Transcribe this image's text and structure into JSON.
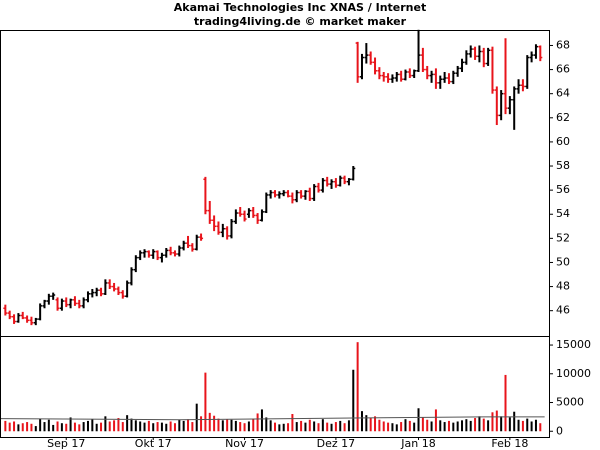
{
  "chart_data": {
    "type": "ohlc",
    "title": "Akamai Technologies Inc XNAS / Internet",
    "subtitle": "trading4living.de © market maker",
    "up_color": "#000000",
    "down_color": "#e8141b",
    "average_color": "#555555",
    "xlim": [
      -1,
      125
    ],
    "xticks": [
      {
        "value": 14,
        "label": "Sep 17"
      },
      {
        "value": 34,
        "label": "Okt 17"
      },
      {
        "value": 55,
        "label": "Nov 17"
      },
      {
        "value": 76,
        "label": "Dez 17"
      },
      {
        "value": 95,
        "label": "Jan 18"
      },
      {
        "value": 116,
        "label": "Feb 18"
      }
    ],
    "ylim": [
      43.9,
      69.2
    ],
    "yticks": [
      46,
      48,
      50,
      52,
      54,
      56,
      58,
      60,
      62,
      64,
      66,
      68
    ],
    "vlim": [
      -1000,
      16400
    ],
    "vticks": [
      0,
      5000,
      10000,
      15000
    ],
    "volume_average": {
      "x": [
        -1,
        40,
        80,
        110,
        124
      ],
      "values": [
        2200,
        2000,
        2300,
        2500,
        2500
      ]
    },
    "bars": [
      {
        "o": 46.2,
        "h": 46.5,
        "l": 45.6,
        "c": 45.8,
        "v": 1800
      },
      {
        "o": 45.8,
        "h": 46.0,
        "l": 45.3,
        "c": 45.5,
        "v": 1500
      },
      {
        "o": 45.5,
        "h": 45.7,
        "l": 44.9,
        "c": 45.1,
        "v": 1700
      },
      {
        "o": 45.1,
        "h": 45.8,
        "l": 45.0,
        "c": 45.6,
        "v": 1200
      },
      {
        "o": 45.6,
        "h": 45.9,
        "l": 45.3,
        "c": 45.4,
        "v": 1400
      },
      {
        "o": 45.4,
        "h": 45.6,
        "l": 45.0,
        "c": 45.2,
        "v": 1600
      },
      {
        "o": 45.2,
        "h": 45.5,
        "l": 44.8,
        "c": 45.0,
        "v": 1300
      },
      {
        "o": 45.0,
        "h": 45.4,
        "l": 44.8,
        "c": 45.3,
        "v": 900
      },
      {
        "o": 45.3,
        "h": 46.6,
        "l": 45.2,
        "c": 46.4,
        "v": 2200
      },
      {
        "o": 46.4,
        "h": 46.9,
        "l": 46.2,
        "c": 46.8,
        "v": 1600
      },
      {
        "o": 46.8,
        "h": 47.4,
        "l": 46.5,
        "c": 47.2,
        "v": 2000
      },
      {
        "o": 47.2,
        "h": 47.5,
        "l": 46.9,
        "c": 47.3,
        "v": 1100
      },
      {
        "o": 46.9,
        "h": 47.1,
        "l": 46.0,
        "c": 46.2,
        "v": 1700
      },
      {
        "o": 46.2,
        "h": 47.0,
        "l": 46.0,
        "c": 46.8,
        "v": 1400
      },
      {
        "o": 46.8,
        "h": 47.1,
        "l": 46.3,
        "c": 46.5,
        "v": 1300
      },
      {
        "o": 46.5,
        "h": 47.0,
        "l": 46.2,
        "c": 46.9,
        "v": 2400
      },
      {
        "o": 46.9,
        "h": 47.2,
        "l": 46.4,
        "c": 46.6,
        "v": 1500
      },
      {
        "o": 46.6,
        "h": 46.9,
        "l": 46.2,
        "c": 46.4,
        "v": 1200
      },
      {
        "o": 46.4,
        "h": 47.1,
        "l": 46.2,
        "c": 46.9,
        "v": 1600
      },
      {
        "o": 46.9,
        "h": 47.6,
        "l": 46.7,
        "c": 47.4,
        "v": 1800
      },
      {
        "o": 47.4,
        "h": 47.8,
        "l": 47.1,
        "c": 47.5,
        "v": 2100
      },
      {
        "o": 47.5,
        "h": 47.9,
        "l": 47.2,
        "c": 47.7,
        "v": 1300
      },
      {
        "o": 47.7,
        "h": 47.9,
        "l": 47.2,
        "c": 47.4,
        "v": 1500
      },
      {
        "o": 47.4,
        "h": 48.6,
        "l": 47.3,
        "c": 48.3,
        "v": 2600
      },
      {
        "o": 48.3,
        "h": 48.6,
        "l": 47.8,
        "c": 48.0,
        "v": 1700
      },
      {
        "o": 48.0,
        "h": 48.3,
        "l": 47.6,
        "c": 47.8,
        "v": 1900
      },
      {
        "o": 47.8,
        "h": 48.0,
        "l": 47.3,
        "c": 47.5,
        "v": 2300
      },
      {
        "o": 47.5,
        "h": 47.7,
        "l": 47.0,
        "c": 47.2,
        "v": 1600
      },
      {
        "o": 47.2,
        "h": 48.5,
        "l": 47.1,
        "c": 48.3,
        "v": 2800
      },
      {
        "o": 48.3,
        "h": 49.6,
        "l": 48.1,
        "c": 49.4,
        "v": 2200
      },
      {
        "o": 49.4,
        "h": 50.6,
        "l": 49.2,
        "c": 50.4,
        "v": 1900
      },
      {
        "o": 50.4,
        "h": 51.0,
        "l": 50.2,
        "c": 50.8,
        "v": 1700
      },
      {
        "o": 50.8,
        "h": 51.1,
        "l": 50.4,
        "c": 50.9,
        "v": 1500
      },
      {
        "o": 50.9,
        "h": 51.0,
        "l": 50.4,
        "c": 50.6,
        "v": 1800
      },
      {
        "o": 50.6,
        "h": 51.1,
        "l": 50.3,
        "c": 50.9,
        "v": 1400
      },
      {
        "o": 50.9,
        "h": 51.0,
        "l": 50.2,
        "c": 50.4,
        "v": 1600
      },
      {
        "o": 50.4,
        "h": 50.8,
        "l": 50.0,
        "c": 50.6,
        "v": 1500
      },
      {
        "o": 50.6,
        "h": 51.2,
        "l": 50.4,
        "c": 51.0,
        "v": 1300
      },
      {
        "o": 51.0,
        "h": 51.3,
        "l": 50.6,
        "c": 50.8,
        "v": 1700
      },
      {
        "o": 50.8,
        "h": 51.0,
        "l": 50.5,
        "c": 50.7,
        "v": 1400
      },
      {
        "o": 50.7,
        "h": 51.4,
        "l": 50.5,
        "c": 51.2,
        "v": 2000
      },
      {
        "o": 51.2,
        "h": 51.8,
        "l": 51.0,
        "c": 51.6,
        "v": 1800
      },
      {
        "o": 51.6,
        "h": 52.2,
        "l": 51.2,
        "c": 51.4,
        "v": 2100
      },
      {
        "o": 51.4,
        "h": 51.6,
        "l": 50.9,
        "c": 51.1,
        "v": 1600
      },
      {
        "o": 51.1,
        "h": 52.3,
        "l": 51.0,
        "c": 52.1,
        "v": 4800
      },
      {
        "o": 52.1,
        "h": 52.4,
        "l": 51.8,
        "c": 52.0,
        "v": 2600
      },
      {
        "o": 56.9,
        "h": 57.1,
        "l": 54.0,
        "c": 54.3,
        "v": 10200
      },
      {
        "o": 54.3,
        "h": 55.1,
        "l": 53.2,
        "c": 53.5,
        "v": 3200
      },
      {
        "o": 53.5,
        "h": 53.9,
        "l": 52.6,
        "c": 53.0,
        "v": 2700
      },
      {
        "o": 53.0,
        "h": 53.4,
        "l": 52.3,
        "c": 52.5,
        "v": 2200
      },
      {
        "o": 52.5,
        "h": 53.2,
        "l": 52.1,
        "c": 52.8,
        "v": 1900
      },
      {
        "o": 52.8,
        "h": 53.0,
        "l": 51.9,
        "c": 52.2,
        "v": 2100
      },
      {
        "o": 52.2,
        "h": 53.6,
        "l": 52.0,
        "c": 53.4,
        "v": 2000
      },
      {
        "o": 53.4,
        "h": 54.4,
        "l": 53.2,
        "c": 54.1,
        "v": 1800
      },
      {
        "o": 54.1,
        "h": 54.6,
        "l": 53.8,
        "c": 54.0,
        "v": 1600
      },
      {
        "o": 54.0,
        "h": 54.3,
        "l": 53.4,
        "c": 53.6,
        "v": 1400
      },
      {
        "o": 54.0,
        "h": 54.5,
        "l": 53.7,
        "c": 54.3,
        "v": 1700
      },
      {
        "o": 54.3,
        "h": 54.6,
        "l": 53.7,
        "c": 53.9,
        "v": 2200
      },
      {
        "o": 53.9,
        "h": 54.1,
        "l": 53.2,
        "c": 53.5,
        "v": 3100
      },
      {
        "o": 53.5,
        "h": 54.4,
        "l": 53.4,
        "c": 54.2,
        "v": 3800
      },
      {
        "o": 54.2,
        "h": 55.8,
        "l": 54.1,
        "c": 55.6,
        "v": 2400
      },
      {
        "o": 55.6,
        "h": 56.0,
        "l": 55.3,
        "c": 55.8,
        "v": 1900
      },
      {
        "o": 55.8,
        "h": 56.0,
        "l": 55.4,
        "c": 55.6,
        "v": 1500
      },
      {
        "o": 55.6,
        "h": 55.9,
        "l": 55.3,
        "c": 55.7,
        "v": 1200
      },
      {
        "o": 55.7,
        "h": 56.0,
        "l": 55.5,
        "c": 55.8,
        "v": 1300
      },
      {
        "o": 55.8,
        "h": 56.0,
        "l": 55.4,
        "c": 55.5,
        "v": 1400
      },
      {
        "o": 55.5,
        "h": 55.8,
        "l": 54.9,
        "c": 55.2,
        "v": 3000
      },
      {
        "o": 55.2,
        "h": 56.0,
        "l": 55.0,
        "c": 55.8,
        "v": 1600
      },
      {
        "o": 55.8,
        "h": 56.0,
        "l": 55.3,
        "c": 55.5,
        "v": 1800
      },
      {
        "o": 55.5,
        "h": 56.0,
        "l": 55.2,
        "c": 55.9,
        "v": 1500
      },
      {
        "o": 55.9,
        "h": 56.2,
        "l": 55.1,
        "c": 55.3,
        "v": 2000
      },
      {
        "o": 55.3,
        "h": 56.5,
        "l": 55.1,
        "c": 56.3,
        "v": 1700
      },
      {
        "o": 56.3,
        "h": 56.6,
        "l": 55.8,
        "c": 56.0,
        "v": 1400
      },
      {
        "o": 56.0,
        "h": 57.0,
        "l": 55.8,
        "c": 56.8,
        "v": 2100
      },
      {
        "o": 56.8,
        "h": 57.1,
        "l": 56.3,
        "c": 56.5,
        "v": 1500
      },
      {
        "o": 56.5,
        "h": 56.9,
        "l": 56.1,
        "c": 56.7,
        "v": 1300
      },
      {
        "o": 56.7,
        "h": 57.0,
        "l": 56.2,
        "c": 56.4,
        "v": 1600
      },
      {
        "o": 56.4,
        "h": 57.2,
        "l": 56.3,
        "c": 57.0,
        "v": 1800
      },
      {
        "o": 57.0,
        "h": 57.2,
        "l": 56.5,
        "c": 56.7,
        "v": 1400
      },
      {
        "o": 56.7,
        "h": 57.0,
        "l": 56.4,
        "c": 56.9,
        "v": 1900
      },
      {
        "o": 56.9,
        "h": 58.0,
        "l": 56.8,
        "c": 57.8,
        "v": 10700
      },
      {
        "o": 68.2,
        "h": 68.3,
        "l": 64.9,
        "c": 65.4,
        "v": 15500
      },
      {
        "o": 65.4,
        "h": 67.3,
        "l": 65.2,
        "c": 67.0,
        "v": 3500
      },
      {
        "o": 67.0,
        "h": 68.2,
        "l": 66.5,
        "c": 67.2,
        "v": 2800
      },
      {
        "o": 67.2,
        "h": 67.5,
        "l": 66.4,
        "c": 66.6,
        "v": 2300
      },
      {
        "o": 66.6,
        "h": 67.0,
        "l": 65.6,
        "c": 65.9,
        "v": 2600
      },
      {
        "o": 65.9,
        "h": 66.2,
        "l": 65.2,
        "c": 65.5,
        "v": 2000
      },
      {
        "o": 65.5,
        "h": 65.8,
        "l": 65.0,
        "c": 65.4,
        "v": 1700
      },
      {
        "o": 65.4,
        "h": 65.7,
        "l": 64.9,
        "c": 65.2,
        "v": 1500
      },
      {
        "o": 65.2,
        "h": 65.6,
        "l": 64.9,
        "c": 65.3,
        "v": 1400
      },
      {
        "o": 65.3,
        "h": 65.8,
        "l": 65.0,
        "c": 65.6,
        "v": 1200
      },
      {
        "o": 65.6,
        "h": 65.9,
        "l": 65.0,
        "c": 65.2,
        "v": 1600
      },
      {
        "o": 65.2,
        "h": 66.0,
        "l": 65.1,
        "c": 65.8,
        "v": 2100
      },
      {
        "o": 65.8,
        "h": 66.1,
        "l": 65.3,
        "c": 65.5,
        "v": 1800
      },
      {
        "o": 65.5,
        "h": 66.0,
        "l": 65.3,
        "c": 65.9,
        "v": 1500
      },
      {
        "o": 65.9,
        "h": 69.3,
        "l": 65.8,
        "c": 67.2,
        "v": 4000
      },
      {
        "o": 67.2,
        "h": 67.8,
        "l": 65.8,
        "c": 66.0,
        "v": 2400
      },
      {
        "o": 66.0,
        "h": 66.3,
        "l": 65.2,
        "c": 65.5,
        "v": 2000
      },
      {
        "o": 65.5,
        "h": 65.9,
        "l": 64.9,
        "c": 65.6,
        "v": 1700
      },
      {
        "o": 65.6,
        "h": 66.1,
        "l": 64.4,
        "c": 64.9,
        "v": 3800
      },
      {
        "o": 64.9,
        "h": 65.5,
        "l": 64.4,
        "c": 65.2,
        "v": 1900
      },
      {
        "o": 65.2,
        "h": 65.8,
        "l": 64.9,
        "c": 65.3,
        "v": 1600
      },
      {
        "o": 65.3,
        "h": 65.7,
        "l": 64.8,
        "c": 65.0,
        "v": 1800
      },
      {
        "o": 65.0,
        "h": 65.9,
        "l": 64.8,
        "c": 65.7,
        "v": 1500
      },
      {
        "o": 65.7,
        "h": 66.3,
        "l": 65.4,
        "c": 66.1,
        "v": 1700
      },
      {
        "o": 66.1,
        "h": 66.9,
        "l": 65.8,
        "c": 66.6,
        "v": 1900
      },
      {
        "o": 66.6,
        "h": 67.6,
        "l": 66.4,
        "c": 67.3,
        "v": 2100
      },
      {
        "o": 67.3,
        "h": 68.0,
        "l": 67.0,
        "c": 67.7,
        "v": 1800
      },
      {
        "o": 67.7,
        "h": 67.9,
        "l": 66.8,
        "c": 67.1,
        "v": 2300
      },
      {
        "o": 67.1,
        "h": 68.0,
        "l": 66.6,
        "c": 67.5,
        "v": 2600
      },
      {
        "o": 67.5,
        "h": 67.8,
        "l": 66.2,
        "c": 66.5,
        "v": 2200
      },
      {
        "o": 66.5,
        "h": 67.8,
        "l": 66.3,
        "c": 67.6,
        "v": 1900
      },
      {
        "o": 67.6,
        "h": 67.9,
        "l": 64.0,
        "c": 64.3,
        "v": 3300
      },
      {
        "o": 64.3,
        "h": 64.6,
        "l": 61.4,
        "c": 62.2,
        "v": 3600
      },
      {
        "o": 62.2,
        "h": 64.3,
        "l": 61.8,
        "c": 64.0,
        "v": 2600
      },
      {
        "o": 64.0,
        "h": 68.6,
        "l": 62.3,
        "c": 62.8,
        "v": 9800
      },
      {
        "o": 62.8,
        "h": 63.8,
        "l": 62.3,
        "c": 63.5,
        "v": 2400
      },
      {
        "o": 63.5,
        "h": 64.6,
        "l": 61.0,
        "c": 64.4,
        "v": 3400
      },
      {
        "o": 64.4,
        "h": 65.2,
        "l": 64.0,
        "c": 64.7,
        "v": 2000
      },
      {
        "o": 64.7,
        "h": 65.2,
        "l": 64.2,
        "c": 64.6,
        "v": 1800
      },
      {
        "o": 64.6,
        "h": 67.2,
        "l": 64.4,
        "c": 67.0,
        "v": 2200
      },
      {
        "o": 67.0,
        "h": 67.5,
        "l": 66.6,
        "c": 67.2,
        "v": 1700
      },
      {
        "o": 67.2,
        "h": 68.1,
        "l": 66.9,
        "c": 67.9,
        "v": 2000
      },
      {
        "o": 67.9,
        "h": 68.0,
        "l": 66.7,
        "c": 67.0,
        "v": 1400
      }
    ]
  }
}
